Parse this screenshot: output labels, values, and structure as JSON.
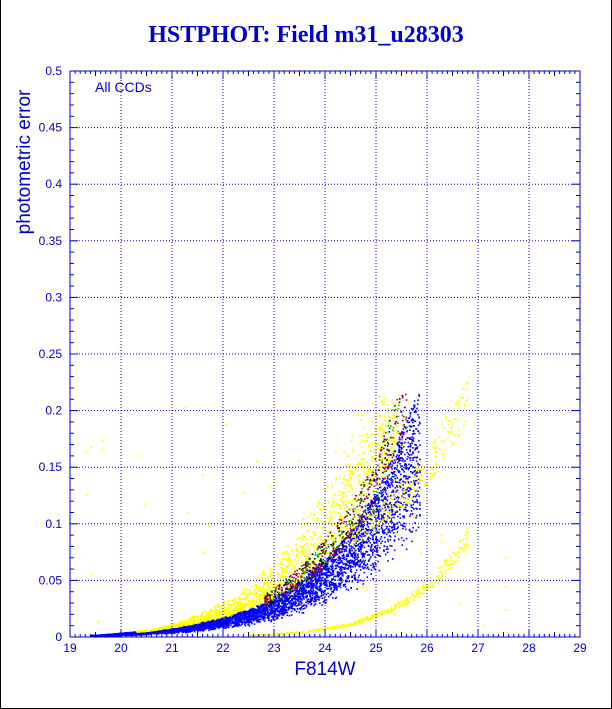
{
  "title": "HSTPHOT: Field m31_u28303",
  "chart_data": {
    "type": "scatter",
    "title": "HSTPHOT: Field m31_u28303",
    "xlabel": "F814W",
    "ylabel": "photometric error",
    "annotation": "All CCDs",
    "xlim": [
      19,
      29
    ],
    "ylim": [
      0,
      0.5
    ],
    "xticks": [
      "19",
      "20",
      "21",
      "22",
      "23",
      "24",
      "25",
      "26",
      "27",
      "28",
      "29"
    ],
    "yticks": [
      "0",
      "0.05",
      "0.1",
      "0.15",
      "0.2",
      "0.25",
      "0.3",
      "0.35",
      "0.4",
      "0.45",
      "0.5"
    ],
    "grid": true,
    "colors": {
      "title": "#0000cc",
      "axis_text": "#0000cc",
      "grid": "#0000cc",
      "main_locus": "#0000ff",
      "scatter_outliers": "#ffff00",
      "secondary_sequence": "#ffff00",
      "mixed_points": [
        "#00cc00",
        "#cc0000",
        "#800080",
        "#000000"
      ]
    },
    "series": [
      {
        "color": "#0000ff",
        "x": [
          19.5,
          20.0,
          20.5,
          21.0,
          21.5,
          22.0,
          22.5,
          23.0,
          23.5,
          24.0,
          24.5,
          25.0,
          25.3,
          25.6,
          25.8
        ],
        "y": [
          0.002,
          0.004,
          0.006,
          0.009,
          0.013,
          0.018,
          0.025,
          0.035,
          0.05,
          0.07,
          0.095,
          0.13,
          0.16,
          0.195,
          0.215
        ]
      },
      {
        "color": "#ffff00",
        "x": [
          20.5,
          21.0,
          21.5,
          22.0,
          22.5,
          23.0,
          23.5,
          24.0,
          24.5,
          25.0
        ],
        "y": [
          0.006,
          0.012,
          0.02,
          0.03,
          0.045,
          0.065,
          0.095,
          0.13,
          0.17,
          0.215
        ]
      },
      {
        "color": "#ffff00",
        "x": [
          22.5,
          23.0,
          23.5,
          24.0,
          24.5,
          25.0,
          25.5,
          26.0,
          26.5,
          26.8
        ],
        "y": [
          0.002,
          0.003,
          0.005,
          0.008,
          0.012,
          0.02,
          0.03,
          0.045,
          0.07,
          0.09
        ]
      },
      {
        "color": "#ffff00",
        "x": [
          24.5,
          25.0,
          25.5,
          26.0,
          26.5,
          26.8
        ],
        "y": [
          0.09,
          0.105,
          0.125,
          0.15,
          0.19,
          0.21
        ]
      }
    ]
  }
}
